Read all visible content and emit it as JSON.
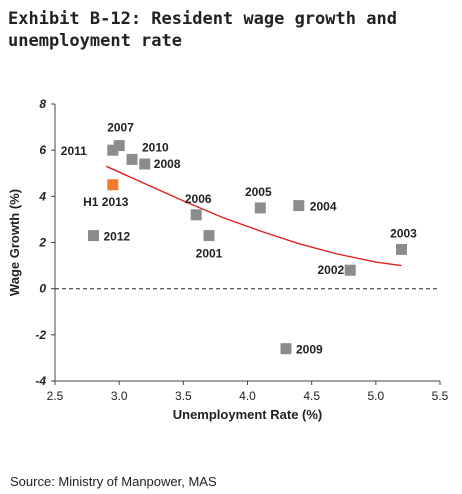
{
  "title": "Exhibit B-12: Resident wage growth and unemployment rate",
  "source": "Source: Ministry of Manpower, MAS",
  "colors": {
    "point": "#8c8c8c",
    "highlight": "#f07a2a",
    "trend": "#e02020",
    "zero_line": "#444444",
    "axis": "#444444",
    "text": "#222222"
  },
  "chart_data": {
    "type": "scatter",
    "title": "",
    "xlabel": "Unemployment Rate (%)",
    "ylabel": "Wage Growth (%)",
    "xlim": [
      2.5,
      5.5
    ],
    "ylim": [
      -4,
      8
    ],
    "x_ticks": [
      "2.5",
      "3.0",
      "3.5",
      "4.0",
      "4.5",
      "5.0",
      "5.5"
    ],
    "y_ticks": [
      "-4",
      "-2",
      "0",
      "2",
      "4",
      "6",
      "8"
    ],
    "x_tick_values": [
      2.5,
      3.0,
      3.5,
      4.0,
      4.5,
      5.0,
      5.5
    ],
    "y_tick_values": [
      -4,
      -2,
      0,
      2,
      4,
      6,
      8
    ],
    "grid": false,
    "zero_line": "dashed",
    "points": [
      {
        "label": "2011",
        "x": 2.95,
        "y": 6.0,
        "highlight": false
      },
      {
        "label": "2007",
        "x": 3.0,
        "y": 6.2,
        "highlight": false
      },
      {
        "label": "2010",
        "x": 3.1,
        "y": 5.6,
        "highlight": false
      },
      {
        "label": "2008",
        "x": 3.2,
        "y": 5.4,
        "highlight": false
      },
      {
        "label": "H1 2013",
        "x": 2.95,
        "y": 4.5,
        "highlight": true
      },
      {
        "label": "2012",
        "x": 2.8,
        "y": 2.3,
        "highlight": false
      },
      {
        "label": "2006",
        "x": 3.6,
        "y": 3.2,
        "highlight": false
      },
      {
        "label": "2001",
        "x": 3.7,
        "y": 2.3,
        "highlight": false
      },
      {
        "label": "2005",
        "x": 4.1,
        "y": 3.5,
        "highlight": false
      },
      {
        "label": "2004",
        "x": 4.4,
        "y": 3.6,
        "highlight": false
      },
      {
        "label": "2003",
        "x": 5.2,
        "y": 1.7,
        "highlight": false
      },
      {
        "label": "2002",
        "x": 4.8,
        "y": 0.8,
        "highlight": false
      },
      {
        "label": "2009",
        "x": 4.3,
        "y": -2.6,
        "highlight": false
      }
    ],
    "trend_line": [
      {
        "x": 2.9,
        "y": 5.3
      },
      {
        "x": 3.2,
        "y": 4.55
      },
      {
        "x": 3.5,
        "y": 3.8
      },
      {
        "x": 3.8,
        "y": 3.1
      },
      {
        "x": 4.1,
        "y": 2.5
      },
      {
        "x": 4.4,
        "y": 1.95
      },
      {
        "x": 4.7,
        "y": 1.5
      },
      {
        "x": 5.0,
        "y": 1.15
      },
      {
        "x": 5.2,
        "y": 1.0
      }
    ]
  }
}
